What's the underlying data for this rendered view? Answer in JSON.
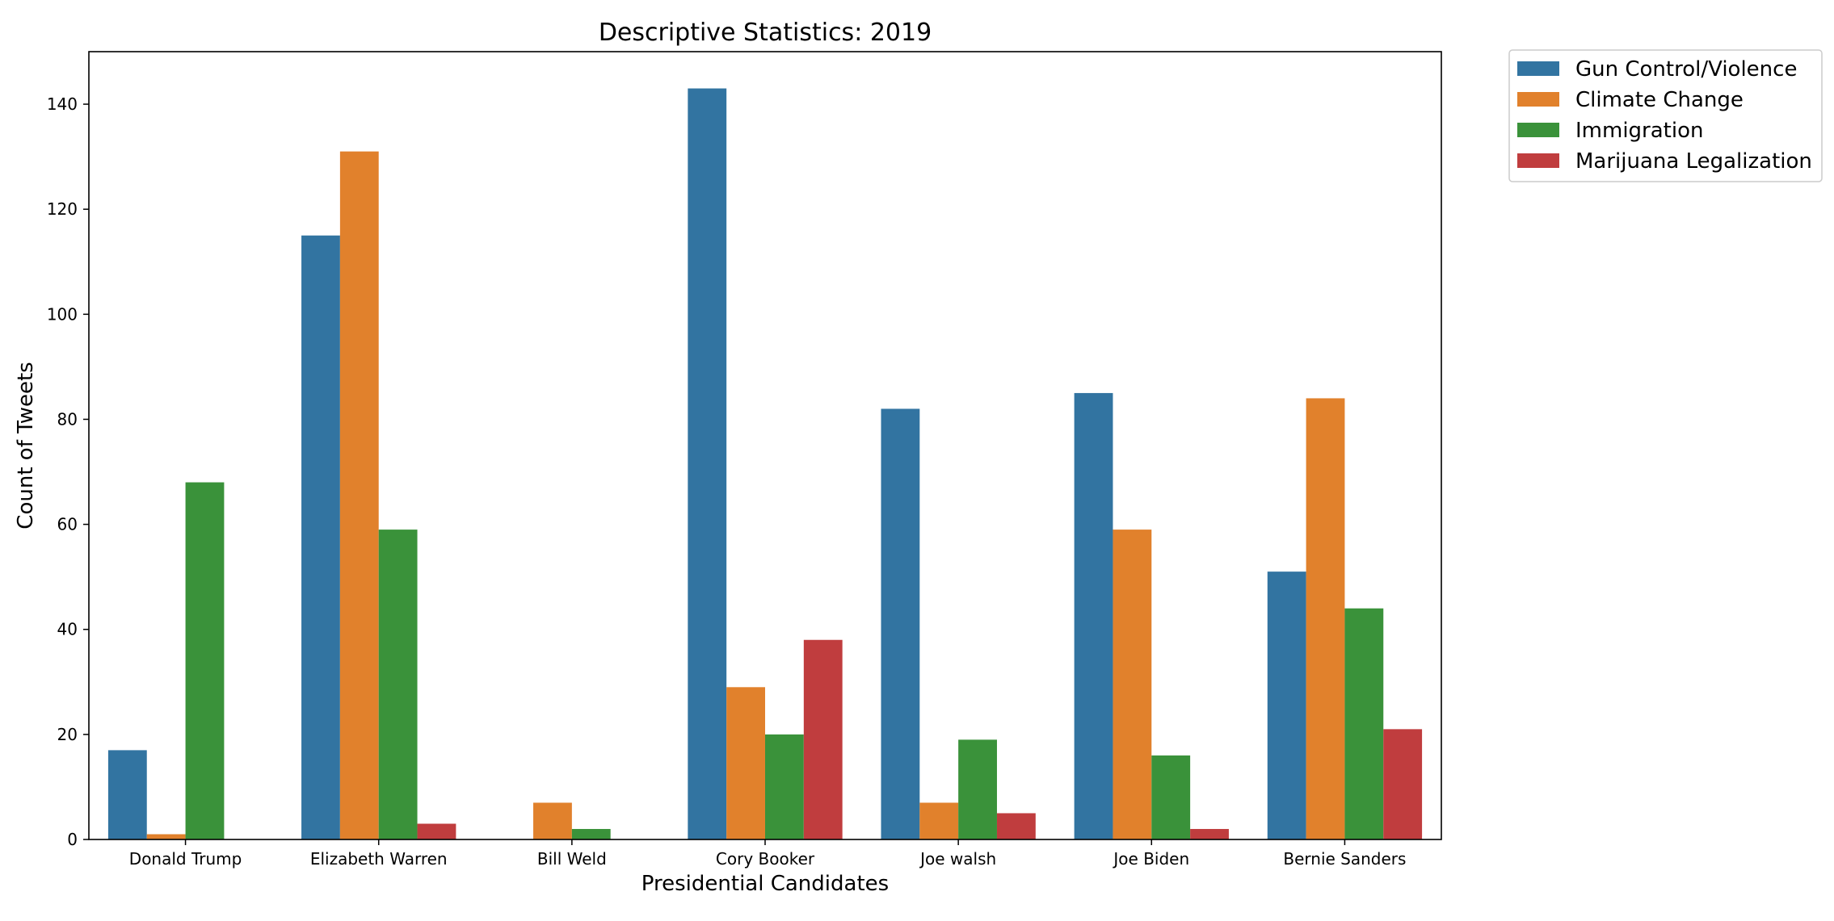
{
  "chart_data": {
    "type": "bar",
    "title": "Descriptive Statistics: 2019",
    "xlabel": "Presidential Candidates",
    "ylabel": "Count of Tweets",
    "categories": [
      "Donald Trump",
      "Elizabeth Warren",
      "Bill Weld",
      "Cory Booker",
      "Joe walsh",
      "Joe Biden",
      "Bernie Sanders"
    ],
    "series": [
      {
        "name": "Gun Control/Violence",
        "color": "#3274a1",
        "values": [
          17,
          115,
          null,
          143,
          82,
          85,
          51
        ]
      },
      {
        "name": "Climate Change",
        "color": "#e1812c",
        "values": [
          1,
          131,
          7,
          29,
          7,
          59,
          84
        ]
      },
      {
        "name": "Immigration",
        "color": "#3a923a",
        "values": [
          68,
          59,
          2,
          20,
          19,
          16,
          44
        ]
      },
      {
        "name": "Marijuana Legalization",
        "color": "#c03d3e",
        "values": [
          null,
          3,
          null,
          38,
          5,
          2,
          21
        ]
      }
    ],
    "ylim": [
      0,
      150
    ],
    "yticks": [
      0,
      20,
      40,
      60,
      80,
      100,
      120,
      140
    ],
    "grid": false,
    "legend_position": "outside-top-right"
  }
}
